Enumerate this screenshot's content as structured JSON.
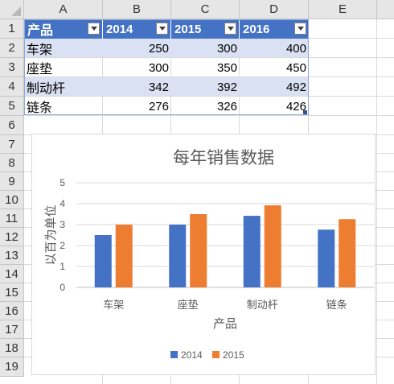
{
  "columns": [
    "A",
    "B",
    "C",
    "D",
    "E"
  ],
  "rows": [
    "1",
    "2",
    "3",
    "4",
    "5",
    "6",
    "7",
    "8",
    "9",
    "10",
    "11",
    "12",
    "13",
    "14",
    "15",
    "16",
    "17",
    "18",
    "19"
  ],
  "table": {
    "headers": [
      "产品",
      "2014",
      "2015",
      "2016"
    ],
    "rows": [
      {
        "product": "车架",
        "v2014": "250",
        "v2015": "300",
        "v2016": "400"
      },
      {
        "product": "座垫",
        "v2014": "300",
        "v2015": "350",
        "v2016": "450"
      },
      {
        "product": "制动杆",
        "v2014": "342",
        "v2015": "392",
        "v2016": "492"
      },
      {
        "product": "链条",
        "v2014": "276",
        "v2015": "326",
        "v2016": "426"
      }
    ]
  },
  "colors": {
    "header_fill": "#4472c4",
    "band_fill": "#d9e1f2",
    "series_2014": "#4472c4",
    "series_2015": "#ed7d31"
  },
  "chart_data": {
    "type": "bar",
    "title": "每年销售数据",
    "xlabel": "产品",
    "ylabel": "以百为单位",
    "categories": [
      "车架",
      "座垫",
      "制动杆",
      "链条"
    ],
    "series": [
      {
        "name": "2014",
        "values": [
          2.5,
          3.0,
          3.42,
          2.76
        ]
      },
      {
        "name": "2015",
        "values": [
          3.0,
          3.5,
          3.92,
          3.26
        ]
      }
    ],
    "ylim": [
      0,
      5
    ],
    "yticks": [
      "0",
      "1",
      "2",
      "3",
      "4",
      "5"
    ],
    "grid": true,
    "legend_position": "bottom"
  }
}
